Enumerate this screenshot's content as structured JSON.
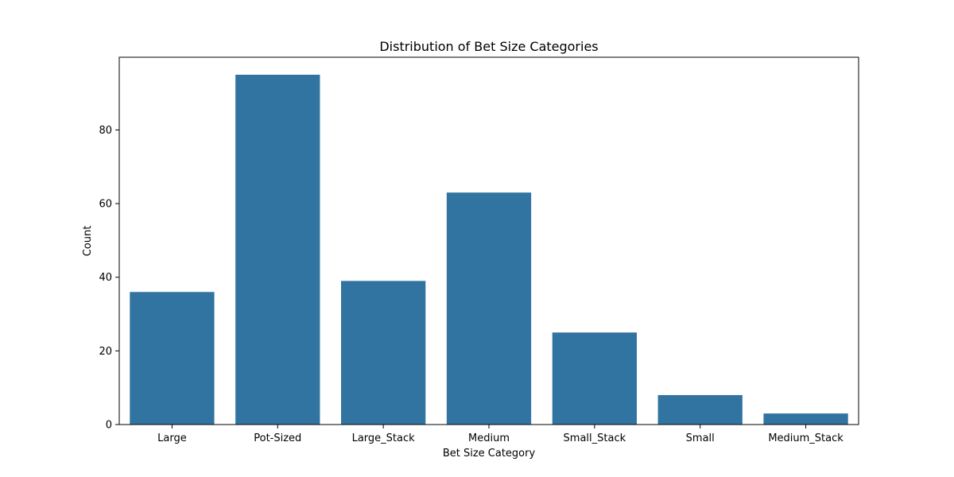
{
  "chart_data": {
    "type": "bar",
    "title": "Distribution of Bet Size Categories",
    "xlabel": "Bet Size Category",
    "ylabel": "Count",
    "categories": [
      "Large",
      "Pot-Sized",
      "Large_Stack",
      "Medium",
      "Small_Stack",
      "Small",
      "Medium_Stack"
    ],
    "values": [
      36,
      95,
      39,
      63,
      25,
      8,
      3
    ],
    "ylim": [
      0,
      99.75
    ],
    "yticks": [
      0,
      20,
      40,
      60,
      80
    ],
    "grid": false,
    "bar_color": "#3274a1"
  }
}
